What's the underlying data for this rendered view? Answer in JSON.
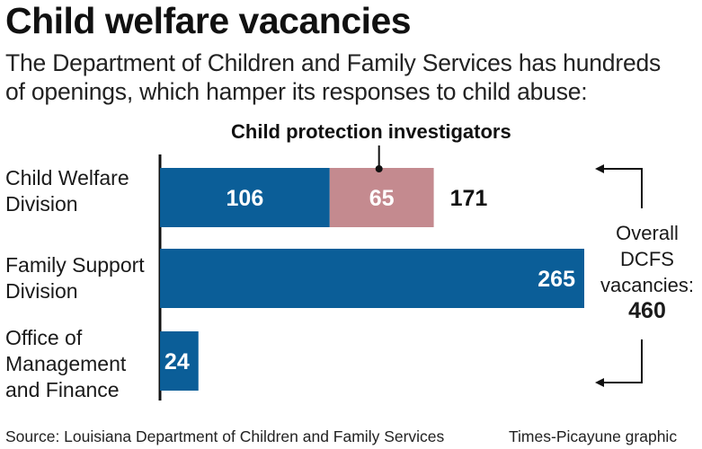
{
  "title": "Child welfare vacancies",
  "subtitle_lines": [
    "The Department of Children and Family Services has hundreds",
    "of openings, which hamper its responses to child abuse:"
  ],
  "annotation": "Child protection investigators",
  "side_note": {
    "lines": [
      "Overall",
      "DCFS",
      "vacancies:"
    ],
    "total": "460"
  },
  "footer": {
    "source": "Source: Louisiana Department of Children and Family Services",
    "credit": "Times-Picayune graphic"
  },
  "colors": {
    "primary": "#0b5e98",
    "investigators": "#c48a8f",
    "text": "#111111"
  },
  "chart_data": {
    "type": "bar",
    "orientation": "horizontal",
    "stacked": true,
    "categories": [
      [
        "Child Welfare",
        "Division"
      ],
      [
        "Family Support",
        "Division"
      ],
      [
        "Office of",
        "Management",
        "and Finance"
      ]
    ],
    "segments": [
      [
        {
          "value": 106,
          "label": "106",
          "color": "#0b5e98"
        },
        {
          "value": 65,
          "label": "65",
          "color": "#c48a8f",
          "note": "Child protection investigators"
        }
      ],
      [
        {
          "value": 265,
          "label": "265",
          "color": "#0b5e98"
        }
      ],
      [
        {
          "value": 24,
          "label": "24",
          "color": "#0b5e98"
        }
      ]
    ],
    "totals": [
      171,
      265,
      24
    ],
    "total_labels": [
      "171",
      "",
      ""
    ],
    "overall_total": 460,
    "grid": false
  }
}
